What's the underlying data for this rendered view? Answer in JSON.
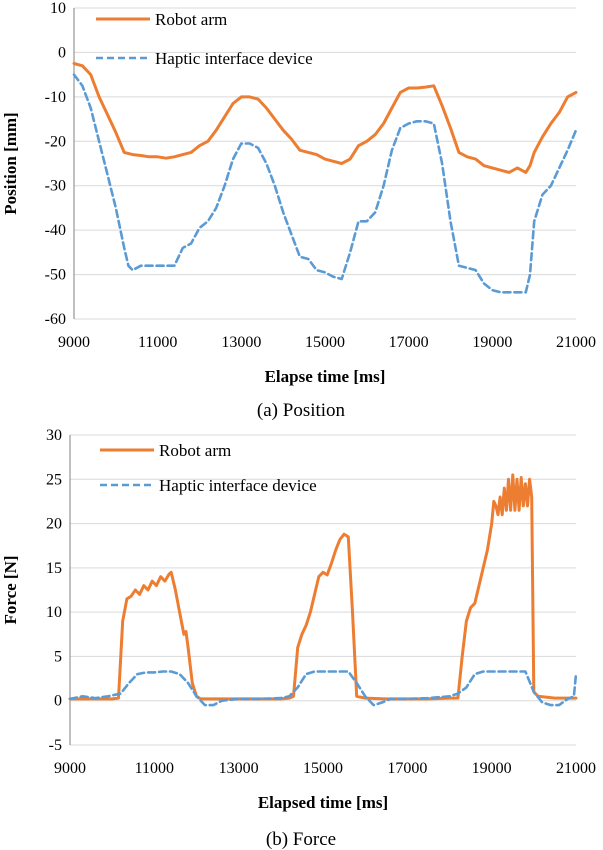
{
  "chart_data": [
    {
      "type": "line",
      "caption": "(a) Position",
      "xlabel": "Elapse time [ms]",
      "ylabel": "Position  [mm]",
      "xlim": [
        9000,
        21000
      ],
      "ylim": [
        -60,
        10
      ],
      "xticks": [
        9000,
        11000,
        13000,
        15000,
        17000,
        19000,
        21000
      ],
      "yticks": [
        10,
        0,
        -10,
        -20,
        -30,
        -40,
        -50,
        -60
      ],
      "grid": "horizontal",
      "legend_position": "top-left",
      "series": [
        {
          "name": "Robot arm",
          "color": "#ED7D31",
          "style": "solid",
          "x": [
            9000,
            9200,
            9400,
            9600,
            9800,
            10000,
            10200,
            10400,
            10600,
            10800,
            11000,
            11200,
            11400,
            11600,
            11800,
            12000,
            12200,
            12400,
            12600,
            12800,
            13000,
            13200,
            13400,
            13600,
            13800,
            14000,
            14200,
            14400,
            14600,
            14800,
            15000,
            15200,
            15400,
            15600,
            15800,
            16000,
            16200,
            16400,
            16600,
            16800,
            17000,
            17200,
            17400,
            17600,
            17800,
            18000,
            18200,
            18400,
            18600,
            18800,
            19000,
            19200,
            19400,
            19600,
            19800,
            19900,
            20000,
            20200,
            20400,
            20600,
            20800,
            21000
          ],
          "y": [
            -2.5,
            -3,
            -5,
            -10,
            -14,
            -18,
            -22.5,
            -23,
            -23.2,
            -23.5,
            -23.5,
            -23.8,
            -23.5,
            -23,
            -22.5,
            -21,
            -20,
            -17.5,
            -14.5,
            -11.5,
            -10,
            -10,
            -10.5,
            -12.5,
            -15,
            -17.5,
            -19.5,
            -22,
            -22.5,
            -23,
            -24,
            -24.5,
            -25,
            -24,
            -21,
            -20,
            -18.5,
            -16,
            -12.5,
            -9,
            -8,
            -8,
            -7.8,
            -7.5,
            -12,
            -17,
            -22.5,
            -23.5,
            -24,
            -25.5,
            -26,
            -26.5,
            -27,
            -26,
            -27,
            -25.5,
            -22.5,
            -19,
            -16,
            -13.5,
            -10,
            -9
          ]
        },
        {
          "name": "Haptic interface device",
          "color": "#5B9BD5",
          "style": "dashed",
          "x": [
            9000,
            9200,
            9400,
            9600,
            9800,
            10000,
            10200,
            10300,
            10400,
            10600,
            10800,
            11000,
            11200,
            11400,
            11600,
            11800,
            12000,
            12200,
            12400,
            12600,
            12800,
            13000,
            13200,
            13400,
            13600,
            13800,
            14000,
            14200,
            14400,
            14600,
            14800,
            15000,
            15200,
            15400,
            15600,
            15800,
            16000,
            16200,
            16400,
            16600,
            16800,
            17000,
            17200,
            17400,
            17600,
            17800,
            18000,
            18200,
            18400,
            18600,
            18800,
            19000,
            19200,
            19400,
            19600,
            19800,
            19900,
            20000,
            20200,
            20400,
            20600,
            20800,
            21000
          ],
          "y": [
            -5,
            -7.5,
            -12.5,
            -20,
            -27.5,
            -35,
            -44,
            -48,
            -49,
            -48,
            -48,
            -48,
            -48,
            -48,
            -44,
            -43,
            -39.5,
            -38,
            -35,
            -30,
            -24,
            -20.5,
            -20.5,
            -21.5,
            -25,
            -30,
            -36,
            -41,
            -46,
            -46.5,
            -49,
            -49.5,
            -50.5,
            -51,
            -45,
            -38,
            -38,
            -36,
            -30,
            -22,
            -17,
            -16,
            -15.5,
            -15.5,
            -16,
            -25,
            -38,
            -48,
            -48.5,
            -49,
            -52,
            -53.5,
            -54,
            -54,
            -54,
            -54,
            -50,
            -38,
            -32,
            -30,
            -26,
            -22,
            -17.5
          ]
        }
      ]
    },
    {
      "type": "line",
      "caption": "(b) Force",
      "xlabel": "Elapsed time [ms]",
      "ylabel": "Force [N]",
      "xlim": [
        9000,
        21000
      ],
      "ylim": [
        -5,
        30
      ],
      "xticks": [
        9000,
        11000,
        13000,
        15000,
        17000,
        19000,
        21000
      ],
      "yticks": [
        30,
        25,
        20,
        15,
        10,
        5,
        0,
        -5
      ],
      "grid": "horizontal",
      "legend_position": "top-left",
      "series": [
        {
          "name": "Robot arm",
          "color": "#ED7D31",
          "style": "solid",
          "x": [
            9000,
            9500,
            10000,
            10150,
            10250,
            10350,
            10450,
            10550,
            10650,
            10750,
            10850,
            10950,
            11050,
            11150,
            11250,
            11350,
            11400,
            11500,
            11600,
            11700,
            11750,
            11800,
            11900,
            12000,
            12100,
            12500,
            13000,
            13500,
            14000,
            14200,
            14300,
            14400,
            14500,
            14600,
            14700,
            14800,
            14900,
            15000,
            15100,
            15200,
            15300,
            15400,
            15500,
            15600,
            15700,
            15800,
            16000,
            16500,
            17000,
            17500,
            18000,
            18200,
            18300,
            18400,
            18500,
            18600,
            18700,
            18800,
            18900,
            19000,
            19050,
            19100,
            19150,
            19200,
            19250,
            19300,
            19350,
            19400,
            19450,
            19500,
            19550,
            19600,
            19650,
            19700,
            19750,
            19800,
            19850,
            19900,
            19950,
            20000,
            20100,
            20500,
            21000
          ],
          "y": [
            0.2,
            0.2,
            0.2,
            0.3,
            9,
            11.5,
            11.8,
            12.5,
            12,
            13,
            12.5,
            13.5,
            13,
            14,
            13.5,
            14.3,
            14.5,
            12.5,
            10,
            7.5,
            7.8,
            6,
            2,
            0.5,
            0.2,
            0.2,
            0.2,
            0.2,
            0.2,
            0.3,
            0.5,
            6,
            7.5,
            8.5,
            10,
            12,
            14,
            14.5,
            14.2,
            15.5,
            17,
            18.2,
            18.8,
            18.5,
            10,
            0.5,
            0.3,
            0.2,
            0.2,
            0.2,
            0.3,
            0.3,
            5,
            9,
            10.5,
            11,
            13,
            15,
            17,
            20,
            22.5,
            22,
            21,
            23,
            21,
            24,
            21.5,
            25,
            21.5,
            25.5,
            21.5,
            25,
            21.5,
            25.2,
            22,
            24.5,
            22,
            25,
            23,
            1,
            0.5,
            0.3,
            0.3
          ]
        },
        {
          "name": "Haptic interface device",
          "color": "#5B9BD5",
          "style": "dashed",
          "x": [
            9000,
            9300,
            9600,
            9900,
            10200,
            10400,
            10600,
            10800,
            11000,
            11200,
            11400,
            11600,
            11800,
            12000,
            12200,
            12400,
            12600,
            13000,
            13500,
            14000,
            14200,
            14400,
            14600,
            14800,
            15000,
            15200,
            15400,
            15600,
            15800,
            16000,
            16200,
            16400,
            16600,
            17000,
            17500,
            18000,
            18200,
            18400,
            18600,
            18800,
            19000,
            19200,
            19400,
            19600,
            19800,
            20000,
            20200,
            20400,
            20600,
            20800,
            20950,
            21000
          ],
          "y": [
            0.2,
            0.5,
            0.3,
            0.5,
            0.8,
            2,
            3,
            3.2,
            3.2,
            3.3,
            3.3,
            3,
            2,
            0.5,
            -0.5,
            -0.5,
            0,
            0.2,
            0.2,
            0.3,
            0.5,
            1.5,
            3,
            3.3,
            3.3,
            3.3,
            3.3,
            3.3,
            2,
            0.5,
            -0.5,
            -0.2,
            0.2,
            0.2,
            0.3,
            0.5,
            0.8,
            1.5,
            3,
            3.3,
            3.3,
            3.3,
            3.3,
            3.3,
            3.3,
            1,
            -0.2,
            -0.5,
            -0.5,
            0.2,
            0.5,
            3
          ]
        }
      ]
    }
  ]
}
